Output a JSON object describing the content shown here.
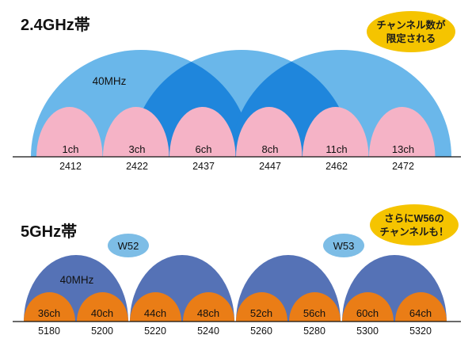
{
  "band24": {
    "title": "2.4GHz帯",
    "width_label": "40MHz",
    "channels": [
      {
        "ch": "1ch",
        "freq": "2412"
      },
      {
        "ch": "3ch",
        "freq": "2422"
      },
      {
        "ch": "6ch",
        "freq": "2437"
      },
      {
        "ch": "8ch",
        "freq": "2447"
      },
      {
        "ch": "11ch",
        "freq": "2462"
      },
      {
        "ch": "13ch",
        "freq": "2472"
      }
    ],
    "callout": {
      "line1": "チャンネル数が",
      "line2": "限定される"
    }
  },
  "band5": {
    "title": "5GHz帯",
    "width_label": "40MHz",
    "groups": [
      "W52",
      "W53"
    ],
    "channels": [
      {
        "ch": "36ch",
        "freq": "5180"
      },
      {
        "ch": "40ch",
        "freq": "5200"
      },
      {
        "ch": "44ch",
        "freq": "5220"
      },
      {
        "ch": "48ch",
        "freq": "5240"
      },
      {
        "ch": "52ch",
        "freq": "5260"
      },
      {
        "ch": "56ch",
        "freq": "5280"
      },
      {
        "ch": "60ch",
        "freq": "5300"
      },
      {
        "ch": "64ch",
        "freq": "5320"
      }
    ],
    "callout": {
      "line1": "さらにW56の",
      "line2": "チャンネルも！"
    }
  },
  "colors": {
    "wide_24": "#6ab7ea",
    "wide_24_overlap": "#1f86dc",
    "narrow_24": "#f5b3c6",
    "narrow_24_overlap": "#e58ba8",
    "wide_5": "#5572b6",
    "narrow_5": "#ea7d16",
    "group_bubble": "#7dbde6",
    "callout": "#f5c400",
    "axis": "#111111"
  }
}
